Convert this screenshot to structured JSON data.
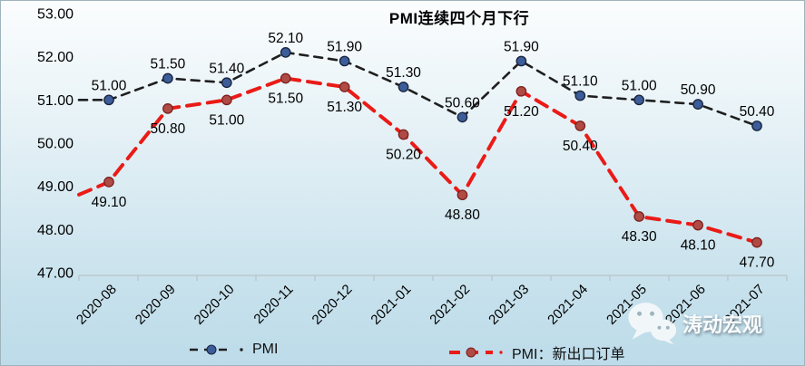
{
  "chart_data": {
    "type": "line",
    "title": "PMI连续四个月下行",
    "categories": [
      "2020-08",
      "2020-09",
      "2020-10",
      "2020-11",
      "2020-12",
      "2021-01",
      "2021-02",
      "2021-03",
      "2021-04",
      "2021-05",
      "2021-06",
      "2021-07"
    ],
    "series": [
      {
        "id": "pmi",
        "name": "PMI",
        "values": [
          51.0,
          51.5,
          51.4,
          52.1,
          51.9,
          51.3,
          50.6,
          51.9,
          51.1,
          51.0,
          50.9,
          50.4
        ],
        "line_color": "#1f1f1f",
        "line_dash": "9 7",
        "line_width": 2.6,
        "marker_fill": "#3c5d98",
        "marker_stroke": "#16223c",
        "label_position": "above"
      },
      {
        "id": "new-export-orders",
        "name": "PMI：新出口订单",
        "values": [
          49.1,
          50.8,
          51.0,
          51.5,
          51.3,
          50.2,
          48.8,
          51.2,
          50.4,
          48.3,
          48.1,
          47.7
        ],
        "line_color": "#ea1b17",
        "line_dash": "14 9",
        "line_width": 4,
        "marker_fill": "#b04a45",
        "marker_stroke": "#7c201c",
        "label_position": "below"
      }
    ],
    "y_axis": {
      "min": 47,
      "max": 53,
      "step": 1,
      "tick_labels": [
        "53.00",
        "52.00",
        "51.00",
        "50.00",
        "49.00",
        "48.00",
        "47.00"
      ]
    },
    "x_axis": {
      "label_rotation": -45
    },
    "grid": false,
    "legend_position": "bottom",
    "axis_color": "#b6c3c9",
    "label_color": "#000000",
    "data_label_format": "0.00",
    "background_top": "#fbfdfe",
    "background_bottom": "#bddbe9"
  },
  "watermark": {
    "icon": "wechat-icon",
    "brand": "涛动宏观"
  }
}
